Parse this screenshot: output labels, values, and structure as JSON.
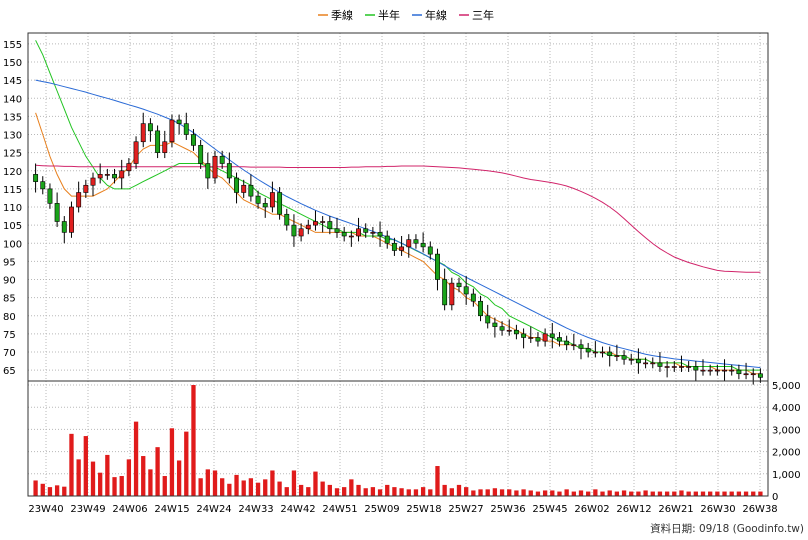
{
  "legend": [
    {
      "name": "季線",
      "color": "#e8801e"
    },
    {
      "name": "半年",
      "color": "#22c422"
    },
    {
      "name": "年線",
      "color": "#2a6ad6"
    },
    {
      "name": "三年",
      "color": "#d1246a"
    }
  ],
  "footer": "資料日期: 09/18  (Goodinfo.tw)",
  "chart_data": {
    "type": "candlestick",
    "x_tick_labels": [
      "23W40",
      "23W49",
      "24W06",
      "24W15",
      "24W24",
      "24W33",
      "24W42",
      "24W51",
      "25W09",
      "25W18",
      "25W27",
      "25W36",
      "25W45",
      "26W02",
      "26W12",
      "26W21",
      "26W30",
      "26W38"
    ],
    "price_axis": {
      "min": 62,
      "max": 158,
      "ticks": [
        65,
        70,
        75,
        80,
        85,
        90,
        95,
        100,
        105,
        110,
        115,
        120,
        125,
        130,
        135,
        140,
        145,
        150,
        155
      ]
    },
    "volume_axis": {
      "min": 0,
      "max": 5000,
      "tick_labels": [
        "0",
        "1,000",
        "2,000",
        "3,000",
        "4,000",
        "5,000"
      ]
    },
    "close": [
      117,
      115,
      111,
      106,
      103,
      110,
      114,
      116,
      118,
      119,
      119,
      118,
      120,
      122,
      128,
      133,
      131,
      125,
      128,
      134,
      133,
      130,
      127,
      122,
      118,
      124,
      122,
      118,
      114,
      116,
      113,
      111,
      110,
      114,
      108,
      105,
      102,
      104,
      105,
      106,
      106,
      104,
      103,
      102,
      102,
      104,
      103,
      103,
      102,
      100,
      98,
      99,
      101,
      100,
      99,
      97,
      90,
      83,
      89,
      88,
      86,
      84,
      80,
      78,
      77,
      76,
      76,
      75,
      74,
      74,
      73,
      75,
      74,
      73,
      72,
      72,
      71,
      70,
      70,
      70,
      69,
      69,
      68,
      68,
      67,
      67,
      67,
      66,
      66,
      66,
      66,
      66,
      65,
      65,
      65,
      65,
      65,
      65,
      64,
      64,
      64,
      63
    ],
    "volume": [
      700,
      550,
      400,
      480,
      420,
      2800,
      1650,
      2700,
      1550,
      1050,
      1850,
      850,
      900,
      1650,
      3350,
      1800,
      1200,
      2200,
      900,
      3050,
      1600,
      2900,
      5000,
      800,
      1200,
      1150,
      800,
      550,
      950,
      700,
      800,
      600,
      750,
      1150,
      650,
      400,
      1150,
      500,
      400,
      1100,
      650,
      500,
      350,
      400,
      750,
      500,
      350,
      400,
      300,
      500,
      400,
      350,
      300,
      300,
      400,
      300,
      1350,
      500,
      350,
      500,
      400,
      250,
      300,
      300,
      350,
      300,
      300,
      250,
      300,
      250,
      200,
      250,
      250,
      200,
      300,
      200,
      250,
      200,
      300,
      200,
      250,
      200,
      250,
      200,
      200,
      250,
      200,
      200,
      200,
      200,
      250,
      200,
      200,
      200,
      200,
      200,
      200,
      200,
      200,
      200,
      200,
      200
    ],
    "series": [
      {
        "name": "季線",
        "values": [
          136,
          130,
          124,
          119,
          115,
          113,
          113,
          113,
          113,
          114,
          115,
          117,
          119,
          121,
          124,
          126,
          127,
          127,
          127,
          128,
          127,
          126,
          125,
          123,
          121,
          119,
          118,
          116,
          114,
          112,
          111,
          110,
          109,
          108,
          108,
          107,
          106,
          105,
          104,
          103,
          103,
          103,
          103,
          103,
          103,
          102,
          102,
          102,
          101,
          100,
          99,
          98,
          97,
          96,
          95,
          93,
          91,
          90,
          88,
          87,
          85,
          84,
          82,
          80,
          79,
          78,
          77,
          76,
          75,
          74,
          74,
          73,
          73,
          72,
          72,
          72,
          71,
          71,
          70,
          70,
          70,
          69,
          69,
          68,
          68,
          68,
          67,
          67,
          67,
          67,
          66,
          66,
          66,
          66,
          66,
          65,
          65,
          65,
          65,
          65,
          64,
          64
        ]
      },
      {
        "name": "半年",
        "values": [
          156,
          152,
          147,
          142,
          137,
          132,
          128,
          124,
          121,
          118,
          116,
          115,
          115,
          115,
          116,
          117,
          118,
          119,
          120,
          121,
          122,
          122,
          122,
          122,
          121,
          121,
          120,
          119,
          118,
          117,
          116,
          114,
          113,
          112,
          111,
          110,
          109,
          108,
          107,
          106,
          105,
          104,
          104,
          103,
          103,
          103,
          102,
          102,
          102,
          101,
          101,
          100,
          99,
          98,
          97,
          96,
          95,
          94,
          92,
          91,
          89,
          88,
          86,
          85,
          83,
          82,
          80,
          79,
          78,
          77,
          76,
          75,
          74,
          73,
          73,
          72,
          71,
          71,
          70,
          70,
          69,
          69,
          69,
          68,
          68,
          68,
          67,
          67,
          67,
          67,
          67,
          66,
          66,
          66,
          66,
          66,
          66,
          66,
          65,
          65,
          65,
          65
        ]
      },
      {
        "name": "年線",
        "values": [
          145,
          144.6,
          144.2,
          143.7,
          143.2,
          142.7,
          142.2,
          141.7,
          141.1,
          140.5,
          140,
          139.4,
          138.8,
          138.2,
          137.6,
          137,
          136.3,
          135.6,
          134.8,
          134,
          133,
          131.8,
          130.5,
          129,
          127.5,
          126,
          124.5,
          123,
          121.6,
          120.2,
          118.9,
          117.6,
          116.4,
          115.2,
          114,
          112.9,
          111.9,
          110.9,
          110,
          109.1,
          108.3,
          107.5,
          106.8,
          106.1,
          105.4,
          104.7,
          104,
          103.3,
          102.5,
          101.7,
          100.9,
          100,
          99.1,
          98.1,
          97.1,
          96,
          94.9,
          93.8,
          92.7,
          91.6,
          90.6,
          89.6,
          88.6,
          87.6,
          86.6,
          85.6,
          84.6,
          83.6,
          82.6,
          81.6,
          80.6,
          79.6,
          78.6,
          77.6,
          76.6,
          75.7,
          74.8,
          74,
          73.3,
          72.6,
          72,
          71.4,
          70.9,
          70.4,
          69.9,
          69.4,
          69,
          68.7,
          68.4,
          68.1,
          67.9,
          67.7,
          67.5,
          67.3,
          67.1,
          66.9,
          66.7,
          66.5,
          66.3,
          66.1,
          65.9,
          65.7
        ]
      },
      {
        "name": "三年",
        "values": [
          121.5,
          121.4,
          121.3,
          121.3,
          121.2,
          121.2,
          121.1,
          121.1,
          121.1,
          121.1,
          121.1,
          121.1,
          121.1,
          121.1,
          121.1,
          121.1,
          121.1,
          121.1,
          121.1,
          121.1,
          121.1,
          121.1,
          121.1,
          121.1,
          121.1,
          121.1,
          121.1,
          121.1,
          121.1,
          121.1,
          121,
          121,
          121,
          121,
          121,
          120.9,
          120.9,
          120.9,
          120.9,
          120.9,
          120.9,
          120.9,
          120.9,
          120.9,
          121,
          121,
          121.1,
          121.1,
          121.1,
          121.2,
          121.2,
          121.3,
          121.3,
          121.3,
          121.3,
          121.2,
          121.1,
          121,
          120.9,
          120.8,
          120.6,
          120.4,
          120.2,
          120,
          119.7,
          119.4,
          119,
          118.5,
          118,
          117.6,
          117.3,
          117,
          116.7,
          116.3,
          115.8,
          115.1,
          114.3,
          113.4,
          112.4,
          111.3,
          110,
          108.5,
          106.8,
          105,
          103.2,
          101.5,
          99.9,
          98.5,
          97.3,
          96.2,
          95.4,
          94.7,
          94.1,
          93.5,
          93,
          92.5,
          92.3,
          92.2,
          92.1,
          92,
          92,
          92
        ]
      }
    ]
  }
}
